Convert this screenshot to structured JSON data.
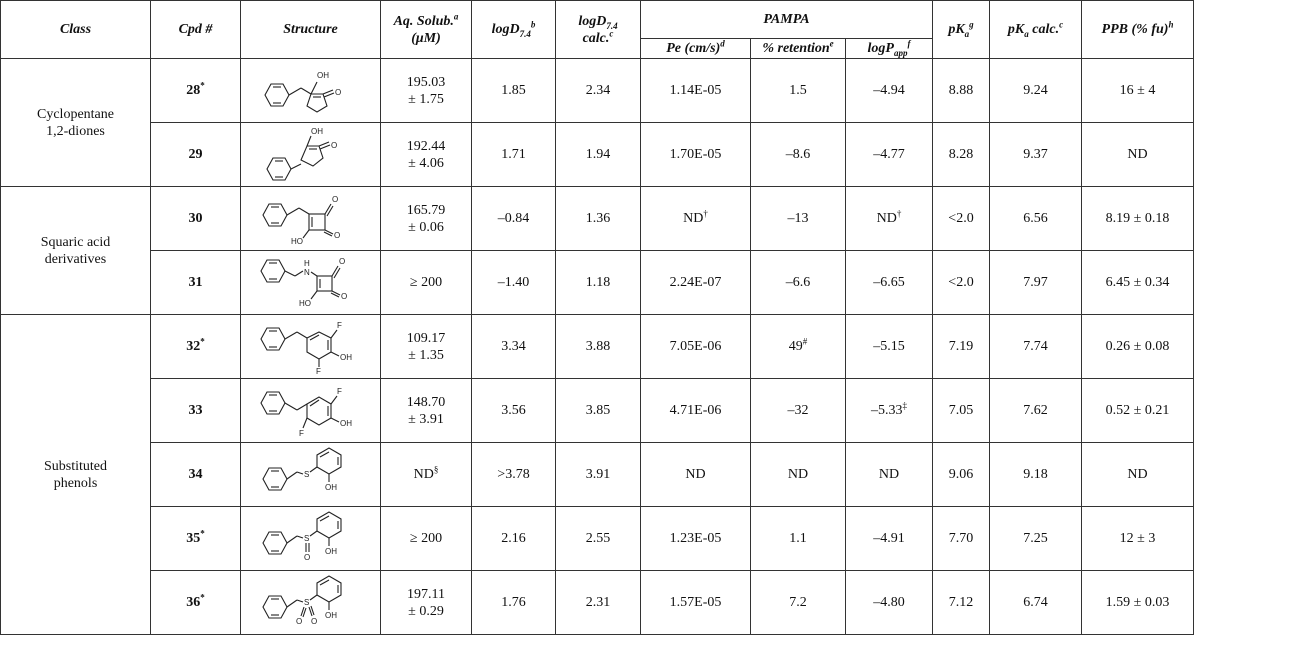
{
  "header": {
    "class": "Class",
    "cpd": "Cpd #",
    "structure": "Structure",
    "aq_solub": "Aq. Solub.",
    "aq_solub_sup": "a",
    "aq_solub_unit": "(μM)",
    "logd_prefix": "logD",
    "logd_sub": "7.4",
    "logd_sup": "b",
    "logd_calc_prefix": "logD",
    "logd_calc_sub": "7.4",
    "logd_calc_word": "calc.",
    "logd_calc_sup": "c",
    "pampa": "PAMPA",
    "pe": "Pe (cm/s)",
    "pe_sup": "d",
    "retention": "% retention",
    "retention_sup": "e",
    "logp_prefix": "logP",
    "logp_sub": "app",
    "logp_sup": "f",
    "pka_prefix": "pK",
    "pka_sub": "a",
    "pka_sup": "g",
    "pka_calc_prefix": "pK",
    "pka_calc_sub": "a",
    "pka_calc_word": " calc.",
    "pka_calc_sup": "c",
    "ppb": "PPB (% fu)",
    "ppb_sup": "h"
  },
  "groups": [
    {
      "name_line1": "Cyclopentane",
      "name_line2": "1,2-diones"
    },
    {
      "name_line1": "Squaric acid",
      "name_line2": "derivatives"
    },
    {
      "name_line1": "Substituted",
      "name_line2": "phenols"
    }
  ],
  "atom_labels": {
    "oh": "OH",
    "o": "O",
    "ho": "HO",
    "f": "F",
    "s": "S",
    "nh": "N",
    "h": "H"
  },
  "rows": [
    {
      "cpd": "28",
      "cpd_mark": "*",
      "solub_l1": "195.03",
      "solub_l2": "± 1.75",
      "logd": "1.85",
      "logd_calc": "2.34",
      "pe": "1.14E-05",
      "pe_mark": "",
      "retention": "1.5",
      "retention_mark": "",
      "logp": "–4.94",
      "logp_mark": "",
      "pka": "8.88",
      "pka_calc": "9.24",
      "ppb": "16 ± 4",
      "solub_mark": "",
      "structure": "benzyl-cyclopentanedione-enol"
    },
    {
      "cpd": "29",
      "cpd_mark": "",
      "solub_l1": "192.44",
      "solub_l2": "± 4.06",
      "logd": "1.71",
      "logd_calc": "1.94",
      "pe": "1.70E-05",
      "pe_mark": "",
      "retention": "–8.6",
      "retention_mark": "",
      "logp": "–4.77",
      "logp_mark": "",
      "pka": "8.28",
      "pka_calc": "9.37",
      "ppb": "ND",
      "solub_mark": "",
      "structure": "phenyl-cyclopentanedione-enol"
    },
    {
      "cpd": "30",
      "cpd_mark": "",
      "solub_l1": "165.79",
      "solub_l2": "± 0.06",
      "logd": "–0.84",
      "logd_calc": "1.36",
      "pe": "ND",
      "pe_mark": "†",
      "retention": "–13",
      "retention_mark": "",
      "logp": "ND",
      "logp_mark": "†",
      "pka": "<2.0",
      "pka_calc": "6.56",
      "ppb": "8.19 ± 0.18",
      "solub_mark": "",
      "structure": "benzyl-squaric-acid"
    },
    {
      "cpd": "31",
      "cpd_mark": "",
      "solub_l1": "≥ 200",
      "solub_l2": "",
      "logd": "–1.40",
      "logd_calc": "1.18",
      "pe": "2.24E-07",
      "pe_mark": "",
      "retention": "–6.6",
      "retention_mark": "",
      "logp": "–6.65",
      "logp_mark": "",
      "pka": "<2.0",
      "pka_calc": "7.97",
      "ppb": "6.45 ± 0.34",
      "solub_mark": "",
      "structure": "benzylamino-squaric-acid"
    },
    {
      "cpd": "32",
      "cpd_mark": "*",
      "solub_l1": "109.17",
      "solub_l2": "± 1.35",
      "logd": "3.34",
      "logd_calc": "3.88",
      "pe": "7.05E-06",
      "pe_mark": "",
      "retention": "49",
      "retention_mark": "#",
      "logp": "–5.15",
      "logp_mark": "",
      "pka": "7.19",
      "pka_calc": "7.74",
      "ppb": "0.26 ± 0.08",
      "solub_mark": "",
      "structure": "benzyl-difluorophenol"
    },
    {
      "cpd": "33",
      "cpd_mark": "",
      "solub_l1": "148.70",
      "solub_l2": "± 3.91",
      "logd": "3.56",
      "logd_calc": "3.85",
      "pe": "4.71E-06",
      "pe_mark": "",
      "retention": "–32",
      "retention_mark": "",
      "logp": "–5.33",
      "logp_mark": "‡",
      "pka": "7.05",
      "pka_calc": "7.62",
      "ppb": "0.52 ± 0.21",
      "solub_mark": "",
      "structure": "benzyl-difluorophenol-isomer"
    },
    {
      "cpd": "34",
      "cpd_mark": "",
      "solub_l1": "ND",
      "solub_l2": "",
      "logd": ">3.78",
      "logd_calc": "3.91",
      "pe": "ND",
      "pe_mark": "",
      "retention": "ND",
      "retention_mark": "",
      "logp": "ND",
      "logp_mark": "",
      "pka": "9.06",
      "pka_calc": "9.18",
      "ppb": "ND",
      "solub_mark": "§",
      "structure": "benzylthio-phenol"
    },
    {
      "cpd": "35",
      "cpd_mark": "*",
      "solub_l1": "≥ 200",
      "solub_l2": "",
      "logd": "2.16",
      "logd_calc": "2.55",
      "pe": "1.23E-05",
      "pe_mark": "",
      "retention": "1.1",
      "retention_mark": "",
      "logp": "–4.91",
      "logp_mark": "",
      "pka": "7.70",
      "pka_calc": "7.25",
      "ppb": "12 ± 3",
      "solub_mark": "",
      "structure": "benzylsulfinyl-phenol"
    },
    {
      "cpd": "36",
      "cpd_mark": "*",
      "solub_l1": "197.11",
      "solub_l2": "± 0.29",
      "logd": "1.76",
      "logd_calc": "2.31",
      "pe": "1.57E-05",
      "pe_mark": "",
      "retention": "7.2",
      "retention_mark": "",
      "logp": "–4.80",
      "logp_mark": "",
      "pka": "7.12",
      "pka_calc": "6.74",
      "ppb": "1.59 ± 0.03",
      "solub_mark": "",
      "structure": "benzylsulfonyl-phenol"
    }
  ]
}
